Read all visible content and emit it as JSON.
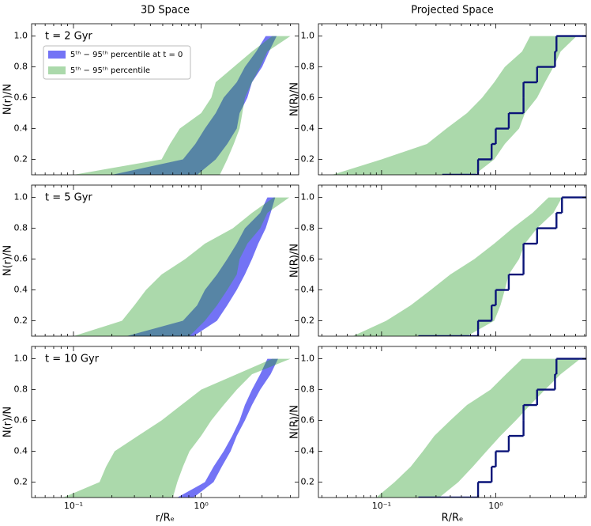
{
  "chart_data": [
    {
      "type": "area",
      "title": "3D Space",
      "annotation": "t = 2 Gyr",
      "ylabel": "N(r)/N",
      "xlim": [
        0.047,
        5.8
      ],
      "ylim": [
        0.1,
        1.08
      ],
      "log_x": true,
      "yticks": [
        0.2,
        0.4,
        0.6,
        0.8,
        {
          "value": 1,
          "label": "1.0"
        }
      ],
      "xticks": [
        0.1,
        1
      ],
      "xminorticks": [
        0.05,
        0.06,
        0.07,
        0.08,
        0.09,
        0.2,
        0.3,
        0.4,
        0.5,
        0.6,
        0.7,
        0.8,
        0.9,
        2,
        3,
        4,
        5
      ],
      "levels": [
        0.1,
        0.2,
        0.3,
        0.4,
        0.5,
        0.6,
        0.7,
        0.8,
        0.9,
        1.0
      ],
      "legend": "upper left",
      "series": [
        {
          "name": "5ᵗʰ − 95ᵗʰ percentile at t = 0",
          "color": "#7373f5",
          "x_low": [
            0.2,
            0.72,
            0.9,
            1.07,
            1.3,
            1.5,
            1.9,
            2.2,
            2.7,
            3.2
          ],
          "x_high": [
            0.93,
            1.3,
            1.6,
            1.9,
            2.0,
            2.3,
            2.5,
            3.0,
            3.4,
            3.9
          ]
        },
        {
          "name": "5ᵗʰ − 95ᵗʰ percentile",
          "color": "#2ca02c",
          "x_low": [
            0.1,
            0.49,
            0.57,
            0.68,
            1.0,
            1.2,
            1.3,
            1.8,
            2.5,
            3.6
          ],
          "x_high": [
            1.4,
            1.6,
            1.8,
            2.0,
            2.1,
            2.2,
            2.5,
            2.9,
            3.3,
            5.0
          ]
        }
      ]
    },
    {
      "type": "step",
      "title": "Projected Space",
      "ylabel": "N(R)/N",
      "xlim": [
        0.028,
        6.2
      ],
      "ylim": [
        0.1,
        1.08
      ],
      "log_x": true,
      "yticks": [
        0.2,
        0.4,
        0.6,
        0.8,
        {
          "value": 1,
          "label": "1.0"
        }
      ],
      "xticks": [
        0.1,
        1
      ],
      "xminorticks": [
        0.03,
        0.04,
        0.05,
        0.06,
        0.07,
        0.08,
        0.09,
        0.2,
        0.3,
        0.4,
        0.5,
        0.6,
        0.7,
        0.8,
        0.9,
        2,
        3,
        4,
        5,
        6
      ],
      "levels": [
        0.1,
        0.2,
        0.3,
        0.4,
        0.5,
        0.6,
        0.7,
        0.8,
        0.9,
        1.0
      ],
      "series": [
        {
          "color": "#2ca02c",
          "x_low": [
            0.037,
            0.1,
            0.25,
            0.37,
            0.56,
            0.76,
            0.97,
            1.2,
            1.7,
            2.0
          ],
          "x_high": [
            0.65,
            0.97,
            1.2,
            1.6,
            1.8,
            2.3,
            2.7,
            3.2,
            3.7,
            5.1
          ]
        }
      ],
      "step": {
        "color": "#0a1478",
        "x": [
          0.34,
          0.7,
          0.92,
          1.0,
          1.3,
          1.75,
          1.75,
          2.3,
          3.3,
          3.4
        ]
      }
    },
    {
      "type": "area",
      "annotation": "t = 5 Gyr",
      "ylabel": "N(r)/N",
      "xlim": [
        0.047,
        5.8
      ],
      "ylim": [
        0.1,
        1.08
      ],
      "log_x": true,
      "yticks": [
        0.2,
        0.4,
        0.6,
        0.8,
        {
          "value": 1,
          "label": "1.0"
        }
      ],
      "xticks": [
        0.1,
        1
      ],
      "xminorticks": [
        0.05,
        0.06,
        0.07,
        0.08,
        0.09,
        0.2,
        0.3,
        0.4,
        0.5,
        0.6,
        0.7,
        0.8,
        0.9,
        2,
        3,
        4,
        5
      ],
      "levels": [
        0.1,
        0.2,
        0.3,
        0.4,
        0.5,
        0.6,
        0.7,
        0.8,
        0.9,
        1.0
      ],
      "series": [
        {
          "color": "#7373f5",
          "x_low": [
            0.26,
            0.72,
            0.93,
            1.07,
            1.33,
            1.6,
            1.9,
            2.2,
            2.9,
            3.3
          ],
          "x_high": [
            0.87,
            1.33,
            1.6,
            1.9,
            2.2,
            2.5,
            2.8,
            3.2,
            3.5,
            3.8
          ]
        },
        {
          "color": "#2ca02c",
          "x_low": [
            0.1,
            0.24,
            0.3,
            0.37,
            0.49,
            0.75,
            1.07,
            1.77,
            2.5,
            3.7
          ],
          "x_high": [
            0.81,
            1.07,
            1.33,
            1.6,
            1.9,
            2.0,
            2.3,
            2.9,
            3.3,
            4.9
          ]
        }
      ]
    },
    {
      "type": "step",
      "ylabel": "N(R)/N",
      "xlim": [
        0.028,
        6.2
      ],
      "ylim": [
        0.1,
        1.08
      ],
      "log_x": true,
      "yticks": [
        0.2,
        0.4,
        0.6,
        0.8,
        {
          "value": 1,
          "label": "1.0"
        }
      ],
      "xticks": [
        0.1,
        1
      ],
      "xminorticks": [
        0.03,
        0.04,
        0.05,
        0.06,
        0.07,
        0.08,
        0.09,
        0.2,
        0.3,
        0.4,
        0.5,
        0.6,
        0.7,
        0.8,
        0.9,
        2,
        3,
        4,
        5,
        6
      ],
      "levels": [
        0.1,
        0.2,
        0.3,
        0.4,
        0.5,
        0.6,
        0.7,
        0.8,
        0.9,
        1.0
      ],
      "series": [
        {
          "color": "#2ca02c",
          "x_low": [
            0.056,
            0.11,
            0.18,
            0.27,
            0.4,
            0.65,
            0.97,
            1.4,
            2.1,
            2.9
          ],
          "x_high": [
            0.56,
            0.97,
            1.1,
            1.2,
            1.3,
            1.6,
            1.8,
            2.3,
            3.2,
            3.8
          ]
        }
      ],
      "step": {
        "color": "#0a1478",
        "x": [
          0.21,
          0.7,
          0.92,
          1.0,
          1.3,
          1.75,
          1.75,
          2.3,
          3.4,
          3.8
        ]
      }
    },
    {
      "type": "area",
      "annotation": "t = 10 Gyr",
      "ylabel": "N(r)/N",
      "xlabel": "r/Rₑ",
      "xlim": [
        0.047,
        5.8
      ],
      "ylim": [
        0.1,
        1.08
      ],
      "log_x": true,
      "yticks": [
        0.2,
        0.4,
        0.6,
        0.8,
        {
          "value": 1,
          "label": "1.0"
        }
      ],
      "xticks": [
        {
          "value": 0.1,
          "label": "10⁻¹"
        },
        {
          "value": 1,
          "label": "10⁰"
        }
      ],
      "xminorticks": [
        0.05,
        0.06,
        0.07,
        0.08,
        0.09,
        0.2,
        0.3,
        0.4,
        0.5,
        0.6,
        0.7,
        0.8,
        0.9,
        2,
        3,
        4,
        5
      ],
      "levels": [
        0.1,
        0.2,
        0.3,
        0.4,
        0.5,
        0.6,
        0.7,
        0.8,
        0.9,
        1.0
      ],
      "series": [
        {
          "color": "#7373f5",
          "x_low": [
            0.65,
            1.07,
            1.25,
            1.5,
            1.75,
            2.0,
            2.2,
            2.5,
            2.9,
            3.3
          ],
          "x_high": [
            0.87,
            1.25,
            1.45,
            1.7,
            1.9,
            2.2,
            2.5,
            2.9,
            3.5,
            4.0
          ]
        },
        {
          "color": "#2ca02c",
          "x_low": [
            0.083,
            0.16,
            0.18,
            0.21,
            0.32,
            0.49,
            0.7,
            1.0,
            1.9,
            3.6
          ],
          "x_high": [
            0.6,
            0.65,
            0.72,
            0.81,
            1.0,
            1.2,
            1.5,
            1.9,
            2.5,
            5.0
          ]
        }
      ]
    },
    {
      "type": "step",
      "ylabel": "N(R)/N",
      "xlabel": "R/Rₑ",
      "xlim": [
        0.028,
        6.2
      ],
      "ylim": [
        0.1,
        1.08
      ],
      "log_x": true,
      "yticks": [
        0.2,
        0.4,
        0.6,
        0.8,
        {
          "value": 1,
          "label": "1.0"
        }
      ],
      "xticks": [
        {
          "value": 0.1,
          "label": "10⁻¹"
        },
        {
          "value": 1,
          "label": "10⁰"
        }
      ],
      "xminorticks": [
        0.03,
        0.04,
        0.05,
        0.06,
        0.07,
        0.08,
        0.09,
        0.2,
        0.3,
        0.4,
        0.5,
        0.6,
        0.7,
        0.8,
        0.9,
        2,
        3,
        4,
        5,
        6
      ],
      "levels": [
        0.1,
        0.2,
        0.3,
        0.4,
        0.5,
        0.6,
        0.7,
        0.8,
        0.9,
        1.0
      ],
      "series": [
        {
          "color": "#2ca02c",
          "x_low": [
            0.09,
            0.13,
            0.18,
            0.23,
            0.29,
            0.4,
            0.56,
            0.9,
            1.23,
            1.7
          ],
          "x_high": [
            0.32,
            0.47,
            0.63,
            0.83,
            1.1,
            1.5,
            2.0,
            2.7,
            3.7,
            5.5
          ]
        }
      ],
      "step": {
        "color": "#0a1478",
        "x": [
          0.21,
          0.7,
          0.92,
          1.0,
          1.3,
          1.75,
          1.75,
          2.3,
          3.3,
          3.4
        ]
      }
    }
  ]
}
